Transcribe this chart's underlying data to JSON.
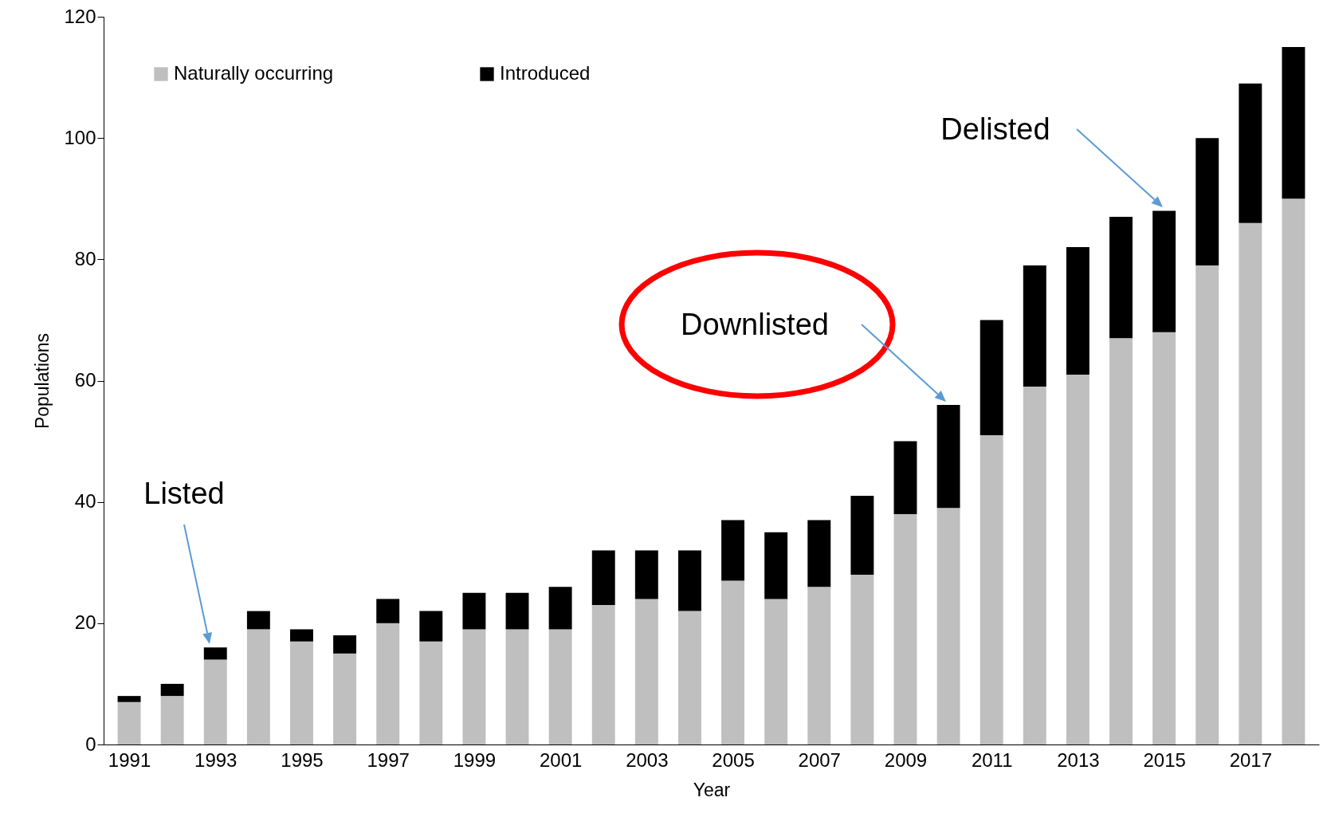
{
  "chart_data": {
    "type": "bar",
    "stacked": true,
    "xlabel": "Year",
    "ylabel": "Populations",
    "x": [
      1991,
      1992,
      1993,
      1994,
      1995,
      1996,
      1997,
      1998,
      1999,
      2000,
      2001,
      2002,
      2003,
      2004,
      2005,
      2006,
      2007,
      2008,
      2009,
      2010,
      2011,
      2012,
      2013,
      2014,
      2015,
      2016,
      2017,
      2018
    ],
    "series": [
      {
        "name": "Naturally occurring",
        "color": "#bfbfbf",
        "values": [
          7,
          8,
          14,
          19,
          17,
          15,
          20,
          17,
          19,
          19,
          19,
          23,
          24,
          22,
          27,
          24,
          26,
          28,
          38,
          39,
          51,
          59,
          61,
          67,
          68,
          79,
          86,
          90
        ]
      },
      {
        "name": "Introduced",
        "color": "#000000",
        "values": [
          1,
          2,
          2,
          3,
          2,
          3,
          4,
          5,
          6,
          6,
          7,
          9,
          8,
          10,
          10,
          11,
          11,
          13,
          12,
          17,
          19,
          20,
          21,
          20,
          20,
          21,
          23,
          25
        ]
      }
    ],
    "xlim": [
      1990.5,
      2018.5
    ],
    "xticks": [
      1991,
      1993,
      1995,
      1997,
      1999,
      2001,
      2003,
      2005,
      2007,
      2009,
      2011,
      2013,
      2015,
      2017
    ],
    "ylim": [
      0,
      120
    ],
    "yticks": [
      0,
      20,
      40,
      60,
      80,
      100,
      120
    ],
    "legend": "top left",
    "grid": false,
    "annotations": [
      "Listed",
      "Downlisted",
      "Delisted"
    ]
  }
}
